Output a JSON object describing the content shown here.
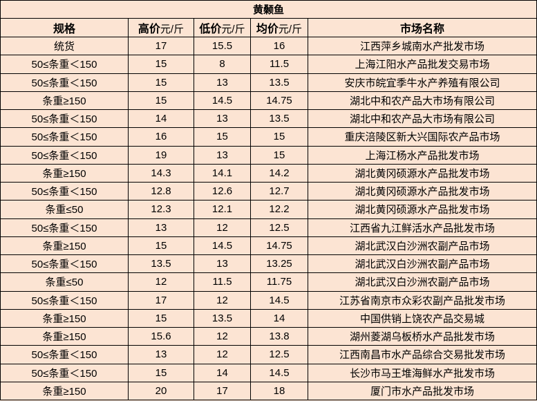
{
  "title": "黄颡鱼",
  "headers": {
    "spec": "规格",
    "high": "高价",
    "low": "低价",
    "avg": "均价",
    "unit": "元/斤",
    "market": "市场名称"
  },
  "rows": [
    {
      "spec": "统货",
      "high": "17",
      "low": "15.5",
      "avg": "16",
      "market": "江西萍乡城南水产批发市场"
    },
    {
      "spec": "50≤条重＜150",
      "high": "15",
      "low": "8",
      "avg": "11.5",
      "market": "上海江阳水产品批发交易市场"
    },
    {
      "spec": "50≤条重＜150",
      "high": "15",
      "low": "13",
      "avg": "13.5",
      "market": "安庆市皖宜季牛水产养殖有限公司"
    },
    {
      "spec": "条重≥150",
      "high": "15",
      "low": "14.5",
      "avg": "14.75",
      "market": "湖北中和农产品大市场有限公司"
    },
    {
      "spec": "50≤条重＜150",
      "high": "14",
      "low": "13",
      "avg": "13.5",
      "market": "湖北中和农产品大市场有限公司"
    },
    {
      "spec": "50≤条重＜150",
      "high": "16",
      "low": "15",
      "avg": "15",
      "market": "重庆涪陵区新大兴国际农产品市场"
    },
    {
      "spec": "50≤条重＜150",
      "high": "19",
      "low": "13",
      "avg": "15",
      "market": "上海江杨水产品批发市场"
    },
    {
      "spec": "条重≥150",
      "high": "14.3",
      "low": "14.1",
      "avg": "14.2",
      "market": "湖北黄冈硕源水产品批发市场"
    },
    {
      "spec": "50≤条重＜150",
      "high": "12.8",
      "low": "12.6",
      "avg": "12.7",
      "market": "湖北黄冈硕源水产品批发市场"
    },
    {
      "spec": "条重≤50",
      "high": "12.3",
      "low": "12.1",
      "avg": "12.2",
      "market": "湖北黄冈硕源水产品批发市场"
    },
    {
      "spec": "50≤条重＜150",
      "high": "13",
      "low": "12",
      "avg": "12.5",
      "market": "江西省九江鲜活水产品批发市场"
    },
    {
      "spec": "条重≥150",
      "high": "15",
      "low": "14.5",
      "avg": "14.75",
      "market": "湖北武汉白沙洲农副产品市场"
    },
    {
      "spec": "50≤条重＜150",
      "high": "13.5",
      "low": "13",
      "avg": "13.25",
      "market": "湖北武汉白沙洲农副产品市场"
    },
    {
      "spec": "条重≤50",
      "high": "12",
      "low": "11.5",
      "avg": "11.75",
      "market": "湖北武汉白沙洲农副产品市场"
    },
    {
      "spec": "50≤条重＜150",
      "high": "17",
      "low": "12",
      "avg": "14.5",
      "market": "江苏省南京市众彩农副产品批发市场"
    },
    {
      "spec": "条重≥150",
      "high": "15",
      "low": "13.5",
      "avg": "14",
      "market": "中国供销上饶农产品交易城"
    },
    {
      "spec": "条重≥150",
      "high": "15.6",
      "low": "12",
      "avg": "13.8",
      "market": "湖州菱湖乌板桥水产品批发市场"
    },
    {
      "spec": "50≤条重＜150",
      "high": "13",
      "low": "12",
      "avg": "12.5",
      "market": "江西南昌市水产品综合交易批发市场"
    },
    {
      "spec": "50≤条重＜150",
      "high": "15",
      "low": "14",
      "avg": "14.5",
      "market": "长沙市马王堆海鲜水产批发市场"
    },
    {
      "spec": "条重≥150",
      "high": "20",
      "low": "17",
      "avg": "18",
      "market": "厦门市水产品批发市场"
    }
  ]
}
